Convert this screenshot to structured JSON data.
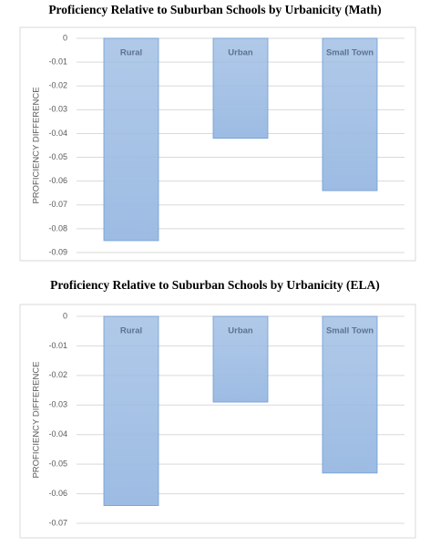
{
  "chart_data": [
    {
      "type": "bar",
      "title": "Proficiency Relative to Suburban Schools by Urbanicity (Math)",
      "y_label": "PROFICIENCY DIFFERENCE",
      "categories": [
        "Rural",
        "Urban",
        "Small Town"
      ],
      "values": [
        -0.085,
        -0.042,
        -0.064
      ],
      "color": "#9dbce3",
      "ylim": [
        -0.09,
        0
      ],
      "yticks": [
        0,
        -0.01,
        -0.02,
        -0.03,
        -0.04,
        -0.05,
        -0.06,
        -0.07,
        -0.08,
        -0.09
      ],
      "grid": true
    },
    {
      "type": "bar",
      "title": "Proficiency Relative to Suburban Schools by Urbanicity (ELA)",
      "y_label": "PROFICIENCY DIFFERENCE",
      "categories": [
        "Rural",
        "Urban",
        "Small Town"
      ],
      "values": [
        -0.064,
        -0.029,
        -0.053
      ],
      "color": "#9dbce3",
      "ylim": [
        -0.07,
        0
      ],
      "yticks": [
        0,
        -0.01,
        -0.02,
        -0.03,
        -0.04,
        -0.05,
        -0.06,
        -0.07
      ],
      "grid": true
    }
  ]
}
